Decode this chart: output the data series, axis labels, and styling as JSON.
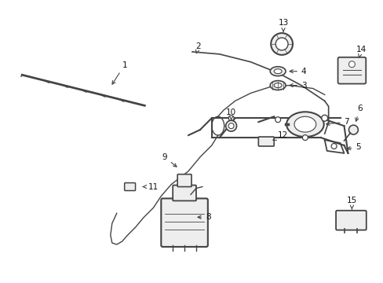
{
  "bg_color": "#ffffff",
  "fig_width": 4.89,
  "fig_height": 3.6,
  "dpi": 100,
  "label_fontsize": 7.5,
  "label_color": "#111111",
  "line_color": "#444444",
  "arrow_color": "#444444"
}
